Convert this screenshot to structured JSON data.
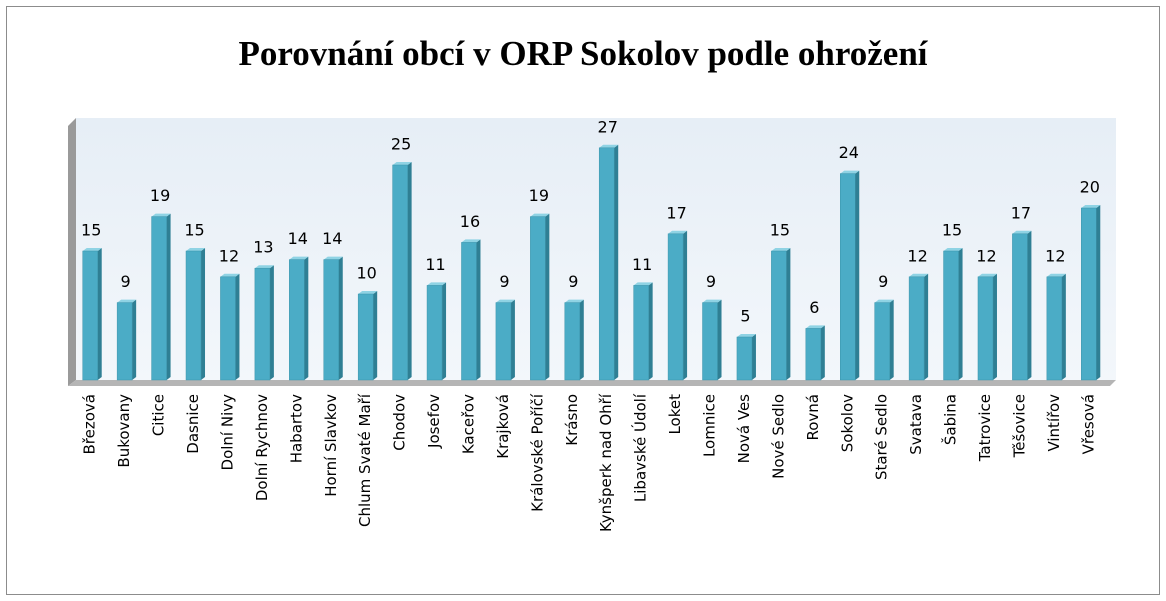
{
  "chart_data": {
    "type": "bar",
    "title": "Porovnání obcí v ORP Sokolov podle ohrožení",
    "categories": [
      "Březová",
      "Bukovany",
      "Citice",
      "Dasnice",
      "Dolní Nivy",
      "Dolní Rychnov",
      "Habartov",
      "Horní Slavkov",
      "Chlum Svaté Maří",
      "Chodov",
      "Josefov",
      "Kaceřov",
      "Krajková",
      "Královské Poříčí",
      "Krásno",
      "Kynšperk nad Ohří",
      "Libavské Údolí",
      "Loket",
      "Lomnice",
      "Nová Ves",
      "Nové Sedlo",
      "Rovná",
      "Sokolov",
      "Staré Sedlo",
      "Svatava",
      "Šabina",
      "Tatrovice",
      "Těšovice",
      "Vintířov",
      "Vřesová"
    ],
    "values": [
      15,
      9,
      19,
      15,
      12,
      13,
      14,
      14,
      10,
      25,
      11,
      16,
      9,
      19,
      9,
      27,
      11,
      17,
      9,
      5,
      15,
      6,
      24,
      9,
      12,
      15,
      12,
      17,
      12,
      20
    ],
    "color": "#4bacc6",
    "ylim": [
      0,
      30
    ]
  }
}
